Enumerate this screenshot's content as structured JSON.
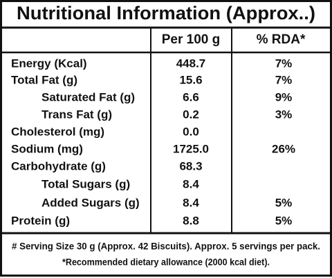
{
  "table": {
    "title": "Nutritional Information (Approx..)",
    "header": [
      "Per 100 g",
      "% RDA*"
    ],
    "rows": [
      [
        "Energy (Kcal)",
        "448.7",
        "7%"
      ],
      [
        "Total Fat (g)",
        "15.6",
        "7%"
      ],
      [
        "Saturated Fat (g)",
        "6.6",
        "9%"
      ],
      [
        "Trans Fat (g)",
        "0.2",
        "3%"
      ],
      [
        "Cholesterol (mg)",
        "0.0"
      ],
      [
        "Sodium (mg)",
        "1725.0",
        "26%"
      ],
      [
        "Carbohydrate (g)",
        "68.3"
      ],
      [
        "Total Sugars (g)",
        "8.4"
      ],
      [
        "Added Sugars (g)",
        "8.4",
        "5%"
      ],
      [
        "Protein (g)",
        "8.8",
        "5%"
      ]
    ],
    "footnotes": [
      "# Serving Size 30 g (Approx. 42 Biscuits). Approx. 5 servings per pack.",
      "*Recommended dietary allowance (2000 kcal diet)."
    ]
  }
}
